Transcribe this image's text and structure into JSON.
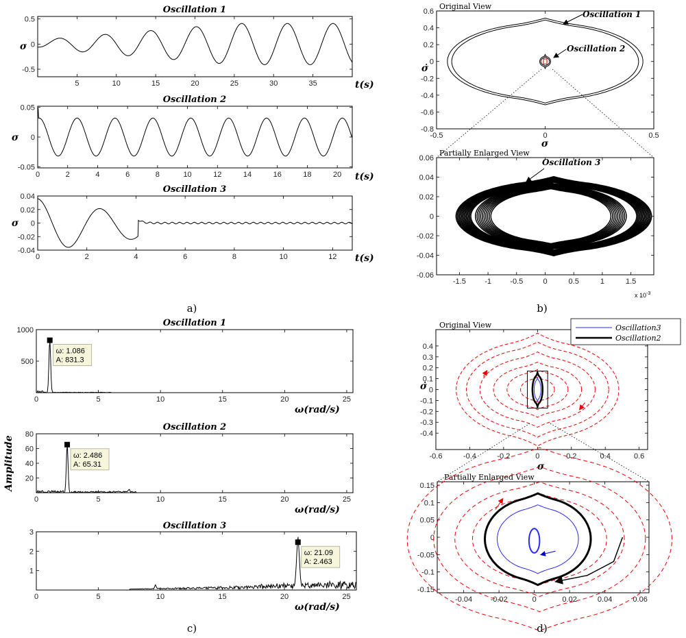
{
  "captions": [
    "a)",
    "b)",
    "c)",
    "d)"
  ],
  "common": {
    "sigma": "σ",
    "sigma_dot": "σ̇",
    "t_label": "t(s)",
    "omega_label": "ω(rad/s)",
    "amplitude": "Amplitude"
  },
  "views": {
    "original": "Original View",
    "partial": "Partially Enlarged View",
    "exp": "x 10"
  },
  "annotations": {
    "osc1": "Oscillation 1",
    "osc2": "Oscillation 2",
    "osc3": "Oscillation 3"
  },
  "legend_d": [
    "Oscillation3",
    "Oscillation2"
  ],
  "chart_data": [
    {
      "id": "a1",
      "type": "line",
      "title": "Oscillation 1",
      "xlabel": "t(s)",
      "ylabel": "σ",
      "xlim": [
        0,
        40
      ],
      "ylim": [
        -0.65,
        0.55
      ],
      "xticks": [
        5,
        10,
        15,
        20,
        25,
        30,
        35
      ],
      "yticks": [
        -0.5,
        0,
        0.5
      ],
      "series": [
        {
          "kind": "growing_sine",
          "amp_start": 0.08,
          "amp_end": 0.41,
          "period": 5.8
        }
      ]
    },
    {
      "id": "a2",
      "type": "line",
      "title": "Oscillation 2",
      "xlabel": "t(s)",
      "ylabel": "σ",
      "xlim": [
        0,
        21
      ],
      "ylim": [
        -0.052,
        0.052
      ],
      "xticks": [
        0,
        2,
        4,
        6,
        8,
        10,
        12,
        14,
        16,
        18,
        20
      ],
      "yticks": [
        -0.05,
        0,
        0.05
      ],
      "series": [
        {
          "kind": "sine",
          "amplitude": 0.032,
          "period": 2.53
        }
      ]
    },
    {
      "id": "a3",
      "type": "line",
      "title": "Oscillation 3",
      "xlabel": "t(s)",
      "ylabel": "σ",
      "xlim": [
        0,
        12.8
      ],
      "ylim": [
        -0.04,
        0.04
      ],
      "xticks": [
        0,
        2,
        4,
        6,
        8,
        10,
        12
      ],
      "yticks": [
        -0.04,
        -0.02,
        0,
        0.02,
        0.04
      ],
      "series": [
        {
          "kind": "decay_then_ripple",
          "start": 0.04,
          "switch_t": 4.1,
          "ripple_amp": 0.0012,
          "ripple_period": 0.3
        }
      ]
    },
    {
      "id": "c1",
      "type": "line",
      "title": "Oscillation 1",
      "xlabel": "ω(rad/s)",
      "ylabel": "",
      "xlim": [
        0,
        25.5
      ],
      "ylim": [
        0,
        1000
      ],
      "xticks": [
        0,
        5,
        10,
        15,
        20,
        25
      ],
      "yticks": [
        500,
        1000
      ],
      "peak": {
        "w": 1.086,
        "A": 831.3,
        "label_w": "ω: 1.086",
        "label_A": "A: 831.3"
      }
    },
    {
      "id": "c2",
      "type": "line",
      "title": "Oscillation 2",
      "xlabel": "ω(rad/s)",
      "ylabel": "Amplitude",
      "xlim": [
        0,
        25.5
      ],
      "ylim": [
        0,
        80
      ],
      "xticks": [
        0,
        5,
        10,
        15,
        20,
        25
      ],
      "yticks": [
        20,
        40,
        60,
        80
      ],
      "peak": {
        "w": 2.486,
        "A": 65.31,
        "label_w": "ω: 2.486",
        "label_A": "A: 65.31"
      }
    },
    {
      "id": "c3",
      "type": "line",
      "title": "Oscillation 3",
      "xlabel": "ω(rad/s)",
      "ylabel": "",
      "xlim": [
        0,
        25.8
      ],
      "ylim": [
        0,
        3
      ],
      "xticks": [
        0,
        5,
        10,
        15,
        20,
        25
      ],
      "yticks": [
        1,
        2,
        3
      ],
      "peak": {
        "w": 21.09,
        "A": 2.463,
        "label_w": "ω: 21.09",
        "label_A": "A: 2.463"
      }
    },
    {
      "id": "b1",
      "type": "line",
      "title": "Original View",
      "xlabel": "σ",
      "ylabel": "σ̇",
      "xlim": [
        -0.5,
        0.5
      ],
      "ylim": [
        -0.8,
        0.6
      ],
      "xticks": [
        -0.5,
        0,
        0.5
      ],
      "yticks": [
        -0.8,
        -0.6,
        -0.4,
        -0.2,
        0,
        0.2,
        0.4,
        0.6
      ]
    },
    {
      "id": "b2",
      "type": "line",
      "title": "Partially Enlarged View",
      "xlabel": "",
      "ylabel": "",
      "xlim": [
        -1.9,
        1.9
      ],
      "ylim": [
        -0.06,
        0.06
      ],
      "xticks": [
        -1.5,
        -1,
        -0.5,
        0,
        0.5,
        1,
        1.5
      ],
      "yticks": [
        -0.06,
        -0.04,
        -0.02,
        0,
        0.02,
        0.04,
        0.06
      ],
      "x_exponent": "-3"
    },
    {
      "id": "d1",
      "type": "line",
      "title": "Original View",
      "xlabel": "σ",
      "ylabel": "σ̇",
      "xlim": [
        -0.6,
        0.65
      ],
      "ylim": [
        -0.55,
        0.55
      ],
      "xticks": [
        -0.6,
        -0.4,
        -0.2,
        0,
        0.2,
        0.4,
        0.6
      ],
      "yticks": [
        -0.4,
        -0.3,
        -0.2,
        -0.1,
        0,
        0.1,
        0.2,
        0.3,
        0.4
      ]
    },
    {
      "id": "d2",
      "type": "line",
      "title": "Partially Enlarged View",
      "xlabel": "",
      "ylabel": "",
      "xlim": [
        -0.055,
        0.065
      ],
      "ylim": [
        -0.16,
        0.16
      ],
      "xticks": [
        -0.04,
        -0.02,
        0,
        0.02,
        0.04,
        0.06
      ],
      "yticks": [
        -0.15,
        -0.1,
        -0.05,
        0,
        0.05,
        0.1,
        0.15
      ]
    }
  ]
}
